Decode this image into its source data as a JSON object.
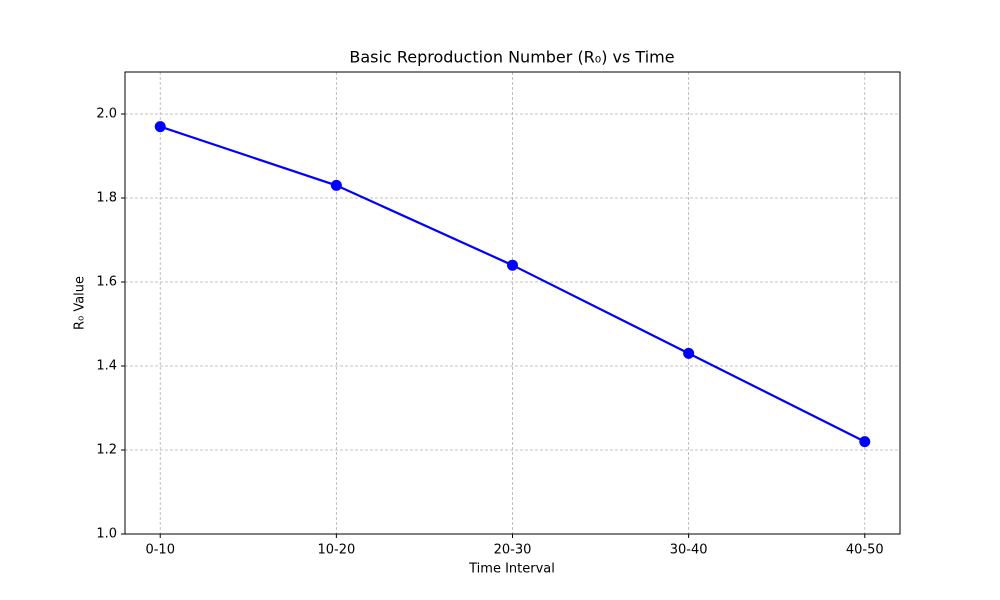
{
  "chart_data": {
    "type": "line",
    "title": "Basic Reproduction Number (R₀) vs Time",
    "x_label": "Time Interval",
    "y_label": "R₀ Value",
    "categories": [
      "0-10",
      "10-20",
      "20-30",
      "30-40",
      "40-50"
    ],
    "values": [
      1.97,
      1.83,
      1.64,
      1.43,
      1.22
    ],
    "color": "#0000ff",
    "ylim": [
      1.0,
      2.1
    ],
    "yticks": [
      {
        "value": 1,
        "label": "1.0"
      },
      1.2,
      1.4,
      1.6,
      1.8,
      {
        "value": 2,
        "label": "2.0"
      }
    ],
    "grid": true
  }
}
